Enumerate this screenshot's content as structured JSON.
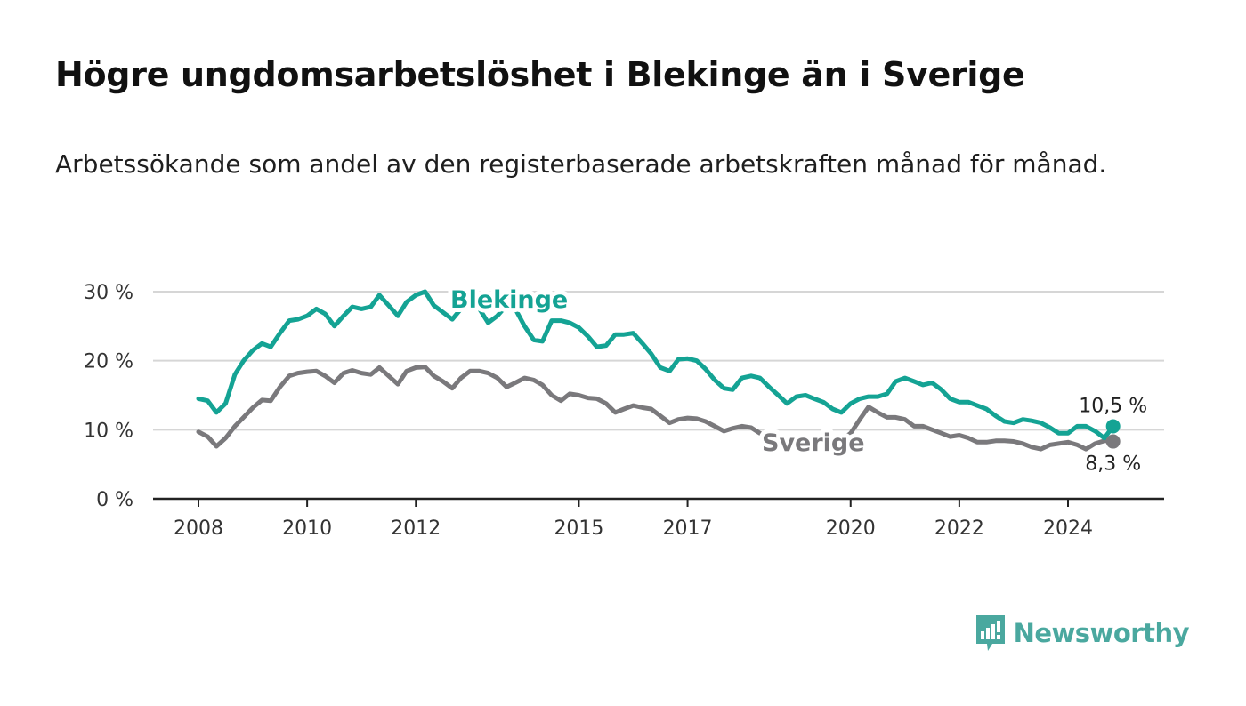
{
  "title": "Högre ungdomsarbetslöshet i Blekinge än i Sverige",
  "subtitle": "Arbetssökande som andel av den registerbaserade arbetskraften månad för månad.",
  "brand": {
    "name": "Newsworthy",
    "icon": "newsworthy-chart-bubble-icon",
    "color": "#4aa89f"
  },
  "chart_data": {
    "type": "line",
    "x_unit": "year (decimal)",
    "xlim": [
      2007.2,
      2025.8
    ],
    "ylim": [
      0,
      30
    ],
    "grid": true,
    "y_ticks": [
      {
        "value": 0,
        "label": "0 %"
      },
      {
        "value": 10,
        "label": "10 %"
      },
      {
        "value": 20,
        "label": "20 %"
      },
      {
        "value": 30,
        "label": "30 %"
      }
    ],
    "x_ticks": [
      {
        "value": 2008,
        "label": "2008"
      },
      {
        "value": 2010,
        "label": "2010"
      },
      {
        "value": 2012,
        "label": "2012"
      },
      {
        "value": 2015,
        "label": "2015"
      },
      {
        "value": 2017,
        "label": "2017"
      },
      {
        "value": 2020,
        "label": "2020"
      },
      {
        "value": 2022,
        "label": "2022"
      },
      {
        "value": 2024,
        "label": "2024"
      }
    ],
    "series": [
      {
        "name": "Blekinge",
        "color": "#14a394",
        "last_label": "10,5 %",
        "x": [
          2008.0,
          2008.17,
          2008.33,
          2008.5,
          2008.67,
          2008.83,
          2009.0,
          2009.17,
          2009.33,
          2009.5,
          2009.67,
          2009.83,
          2010.0,
          2010.17,
          2010.33,
          2010.5,
          2010.67,
          2010.83,
          2011.0,
          2011.17,
          2011.33,
          2011.5,
          2011.67,
          2011.83,
          2012.0,
          2012.17,
          2012.33,
          2012.5,
          2012.67,
          2012.83,
          2013.0,
          2013.17,
          2013.33,
          2013.5,
          2013.67,
          2013.83,
          2014.0,
          2014.17,
          2014.33,
          2014.5,
          2014.67,
          2014.83,
          2015.0,
          2015.17,
          2015.33,
          2015.5,
          2015.67,
          2015.83,
          2016.0,
          2016.17,
          2016.33,
          2016.5,
          2016.67,
          2016.83,
          2017.0,
          2017.17,
          2017.33,
          2017.5,
          2017.67,
          2017.83,
          2018.0,
          2018.17,
          2018.33,
          2018.5,
          2018.67,
          2018.83,
          2019.0,
          2019.17,
          2019.33,
          2019.5,
          2019.67,
          2019.83,
          2020.0,
          2020.17,
          2020.33,
          2020.5,
          2020.67,
          2020.83,
          2021.0,
          2021.17,
          2021.33,
          2021.5,
          2021.67,
          2021.83,
          2022.0,
          2022.17,
          2022.33,
          2022.5,
          2022.67,
          2022.83,
          2023.0,
          2023.17,
          2023.33,
          2023.5,
          2023.67,
          2023.83,
          2024.0,
          2024.17,
          2024.33,
          2024.5,
          2024.67,
          2024.83
        ],
        "y": [
          14.5,
          14.2,
          12.5,
          13.8,
          18.0,
          20.0,
          21.5,
          22.5,
          22.0,
          24.0,
          25.8,
          26.0,
          26.5,
          27.5,
          26.8,
          25.0,
          26.5,
          27.8,
          27.5,
          27.8,
          29.5,
          28.0,
          26.5,
          28.5,
          29.5,
          30.0,
          28.0,
          27.0,
          26.0,
          27.5,
          28.5,
          27.5,
          25.5,
          26.5,
          28.0,
          27.5,
          25.0,
          23.0,
          22.8,
          25.8,
          25.8,
          25.5,
          24.8,
          23.5,
          22.0,
          22.2,
          23.8,
          23.8,
          24.0,
          22.5,
          21.0,
          19.0,
          18.5,
          20.2,
          20.3,
          20.0,
          18.8,
          17.2,
          16.0,
          15.8,
          17.5,
          17.8,
          17.5,
          16.2,
          15.0,
          13.8,
          14.8,
          15.0,
          14.5,
          14.0,
          13.0,
          12.5,
          13.8,
          14.5,
          14.8,
          14.8,
          15.2,
          17.0,
          17.5,
          17.0,
          16.5,
          16.8,
          15.8,
          14.5,
          14.0,
          14.0,
          13.5,
          13.0,
          12.0,
          11.2,
          11.0,
          11.5,
          11.3,
          11.0,
          10.3,
          9.5,
          9.5,
          10.5,
          10.5,
          9.8,
          8.8,
          10.5
        ]
      },
      {
        "name": "Sverige",
        "color": "#7a797c",
        "last_label": "8,3 %",
        "x": [
          2008.0,
          2008.17,
          2008.33,
          2008.5,
          2008.67,
          2008.83,
          2009.0,
          2009.17,
          2009.33,
          2009.5,
          2009.67,
          2009.83,
          2010.0,
          2010.17,
          2010.33,
          2010.5,
          2010.67,
          2010.83,
          2011.0,
          2011.17,
          2011.33,
          2011.5,
          2011.67,
          2011.83,
          2012.0,
          2012.17,
          2012.33,
          2012.5,
          2012.67,
          2012.83,
          2013.0,
          2013.17,
          2013.33,
          2013.5,
          2013.67,
          2013.83,
          2014.0,
          2014.17,
          2014.33,
          2014.5,
          2014.67,
          2014.83,
          2015.0,
          2015.17,
          2015.33,
          2015.5,
          2015.67,
          2015.83,
          2016.0,
          2016.17,
          2016.33,
          2016.5,
          2016.67,
          2016.83,
          2017.0,
          2017.17,
          2017.33,
          2017.5,
          2017.67,
          2017.83,
          2018.0,
          2018.17,
          2018.33,
          2018.5,
          2018.67,
          2018.83,
          2019.0,
          2019.17,
          2019.33,
          2019.5,
          2019.67,
          2019.83,
          2020.0,
          2020.17,
          2020.33,
          2020.5,
          2020.67,
          2020.83,
          2021.0,
          2021.17,
          2021.33,
          2021.5,
          2021.67,
          2021.83,
          2022.0,
          2022.17,
          2022.33,
          2022.5,
          2022.67,
          2022.83,
          2023.0,
          2023.17,
          2023.33,
          2023.5,
          2023.67,
          2023.83,
          2024.0,
          2024.17,
          2024.33,
          2024.5,
          2024.67,
          2024.83
        ],
        "y": [
          9.7,
          9.0,
          7.6,
          8.8,
          10.5,
          11.8,
          13.2,
          14.3,
          14.2,
          16.2,
          17.8,
          18.2,
          18.4,
          18.5,
          17.8,
          16.8,
          18.2,
          18.6,
          18.2,
          18.0,
          19.0,
          17.8,
          16.6,
          18.5,
          19.0,
          19.1,
          17.8,
          17.0,
          16.0,
          17.5,
          18.5,
          18.5,
          18.2,
          17.5,
          16.2,
          16.8,
          17.5,
          17.2,
          16.5,
          15.0,
          14.2,
          15.2,
          15.0,
          14.6,
          14.5,
          13.8,
          12.5,
          13.0,
          13.5,
          13.2,
          13.0,
          12.0,
          11.0,
          11.5,
          11.7,
          11.6,
          11.2,
          10.5,
          9.8,
          10.2,
          10.5,
          10.3,
          9.5,
          8.8,
          8.5,
          8.3,
          8.5,
          8.7,
          8.6,
          8.4,
          8.3,
          8.5,
          9.5,
          11.5,
          13.3,
          12.5,
          11.8,
          11.8,
          11.5,
          10.5,
          10.5,
          10.0,
          9.5,
          9.0,
          9.2,
          8.8,
          8.2,
          8.2,
          8.4,
          8.4,
          8.3,
          8.0,
          7.5,
          7.2,
          7.8,
          8.0,
          8.2,
          7.8,
          7.2,
          8.0,
          8.4,
          8.3
        ]
      }
    ],
    "series_label_text": [
      "Blekinge",
      "Sverige"
    ]
  }
}
